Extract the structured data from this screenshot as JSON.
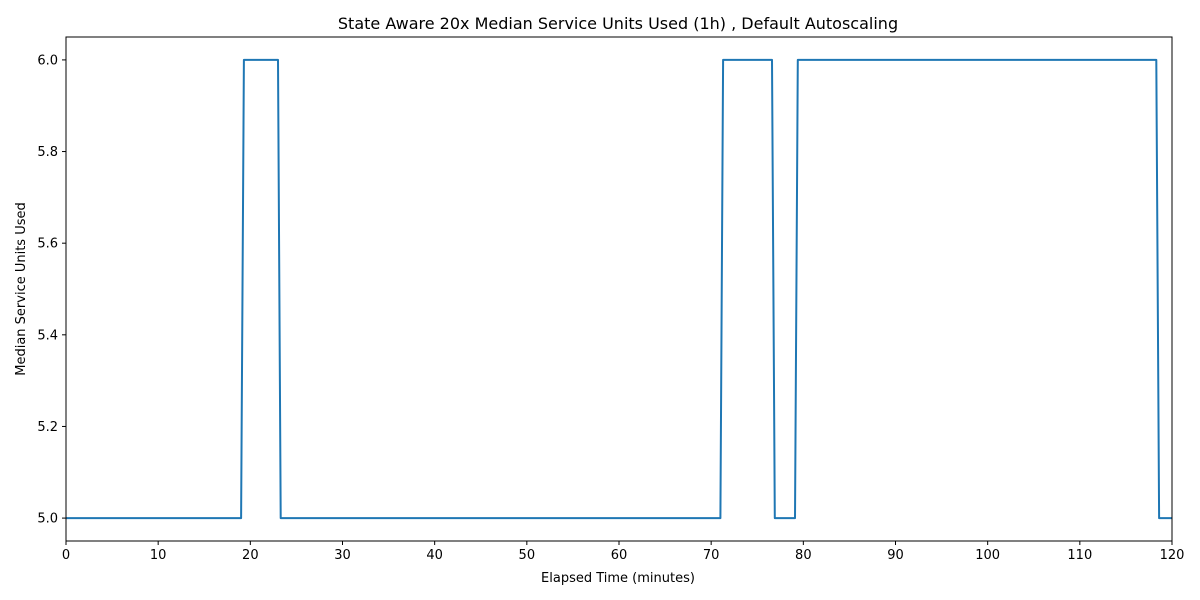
{
  "chart_data": {
    "type": "line",
    "title": "State Aware 20x Median Service Units Used (1h) , Default Autoscaling",
    "xlabel": "Elapsed Time (minutes)",
    "ylabel": "Median Service Units Used",
    "xlim": [
      0,
      120
    ],
    "ylim": [
      4.95,
      6.05
    ],
    "xticks": [
      0,
      10,
      20,
      30,
      40,
      50,
      60,
      70,
      80,
      90,
      100,
      110,
      120
    ],
    "yticks": [
      5.0,
      5.2,
      5.4,
      5.6,
      5.8,
      6.0
    ],
    "grid": false,
    "legend": "none",
    "series": [
      {
        "color": "#1f77b4",
        "x": [
          0,
          19.0,
          19.3,
          23.0,
          23.3,
          71.0,
          71.3,
          76.6,
          76.9,
          79.1,
          79.4,
          118.3,
          118.6,
          120
        ],
        "values": [
          5,
          5,
          6,
          6,
          5,
          5,
          6,
          6,
          5,
          5,
          6,
          6,
          5,
          5
        ]
      }
    ]
  }
}
